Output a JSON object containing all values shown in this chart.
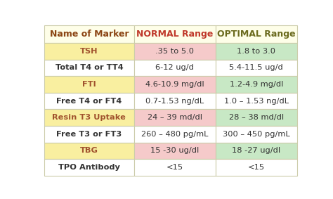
{
  "headers": [
    "Name of Marker",
    "NORMAL Range",
    "OPTIMAL Range"
  ],
  "header_bg": "#FEFEE8",
  "header_text_colors": [
    "#8B4513",
    "#C0392B",
    "#6B6B1E"
  ],
  "rows": [
    [
      "TSH",
      ".35 to 5.0",
      "1.8 to 3.0"
    ],
    [
      "Total T4 or TT4",
      "6-12 ug/d",
      "5.4-11.5 ug/d"
    ],
    [
      "FTI",
      "4.6-10.9 mg/dl",
      "1.2-4.9 mg/dl"
    ],
    [
      "Free T4 or FT4",
      "0.7-1.53 ng/dL",
      "1.0 – 1.53 ng/dL"
    ],
    [
      "Resin T3 Uptake",
      "24 – 39 md/dl",
      "28 – 38 md/dl"
    ],
    [
      "Free T3 or FT3",
      "260 – 480 pg/mL",
      "300 – 450 pg/mL"
    ],
    [
      "TBG",
      "15 -30 ug/dl",
      "18 -27 ug/dl"
    ],
    [
      "TPO Antibody",
      "<15",
      "<15"
    ]
  ],
  "highlighted_rows": [
    0,
    2,
    4,
    6
  ],
  "col1_highlight_bg": "#F9EFA0",
  "col2_highlight_bg": "#F5CACA",
  "col3_highlight_bg": "#C8E8C5",
  "col1_highlight_text": "#A0522D",
  "normal_bg": "#FFFFFF",
  "normal_text": "#333333",
  "grid_color": "#CCCCAA",
  "figsize": [
    4.74,
    2.83
  ],
  "dpi": 100,
  "bg_color": "#FFFFFF",
  "font_size_header": 9.0,
  "font_size_body": 8.2
}
